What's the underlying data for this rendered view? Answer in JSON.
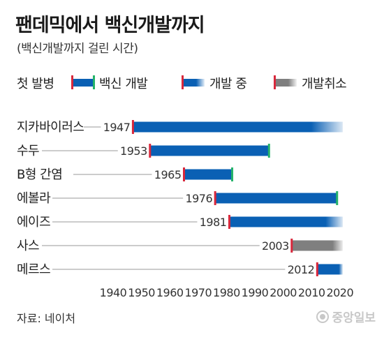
{
  "header": {
    "title": "팬데믹에서 백신개발까지",
    "subtitle": "(백신개발까지 걸린 시간)"
  },
  "legend": {
    "first_outbreak": "첫 발병",
    "vaccine_developed": "백신 개발",
    "in_development": "개발 중",
    "cancelled": "개발취소"
  },
  "footer": {
    "source": "자료: 네이처",
    "brand": "중앙일보"
  },
  "colors": {
    "bar_blue": "#0a60b4",
    "bar_gray": "#7f7f7f",
    "start_mark": "#d8283c",
    "end_mark": "#25b36a",
    "leader_line": "#9a9a9a"
  },
  "chart_data": {
    "type": "bar",
    "orientation": "horizontal-timeline",
    "xlim": [
      1940,
      2022
    ],
    "x_ticks": [
      1940,
      1950,
      1960,
      1970,
      1980,
      1990,
      2000,
      2010,
      2020
    ],
    "diseases": [
      {
        "name": "지카바이러스",
        "outbreak": 1947,
        "outbreak_label": "1947",
        "end": 2021,
        "status": "in_development"
      },
      {
        "name": "수두",
        "outbreak": 1953,
        "outbreak_label": "1953",
        "end": 1995,
        "status": "developed"
      },
      {
        "name": "B형 간염",
        "outbreak": 1965,
        "outbreak_label": "1965",
        "end": 1982,
        "status": "developed"
      },
      {
        "name": "에볼라",
        "outbreak": 1976,
        "outbreak_label": "1976",
        "end": 2019,
        "status": "developed"
      },
      {
        "name": "에이즈",
        "outbreak": 1981,
        "outbreak_label": "1981",
        "end": 2021,
        "status": "in_development"
      },
      {
        "name": "사스",
        "outbreak": 2003,
        "outbreak_label": "2003",
        "end": 2021,
        "status": "cancelled"
      },
      {
        "name": "메르스",
        "outbreak": 2012,
        "outbreak_label": "2012",
        "end": 2021,
        "status": "in_development"
      }
    ]
  }
}
